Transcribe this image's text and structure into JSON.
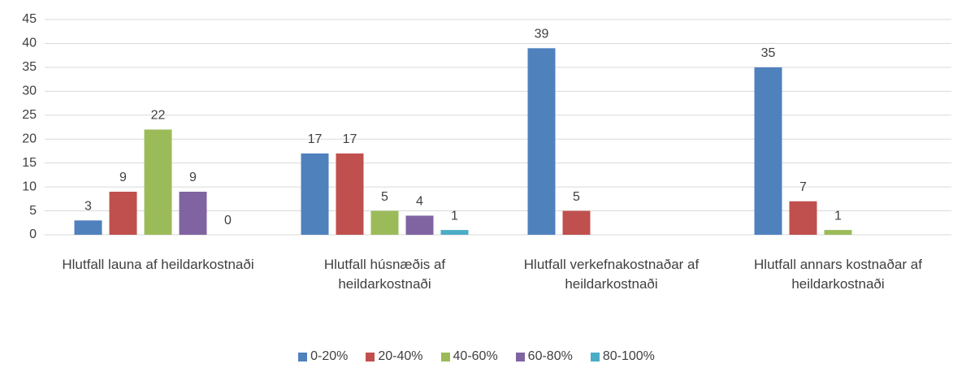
{
  "chart_data": {
    "type": "bar",
    "categories": [
      "Hlutfall launa af heildarkostnaði",
      "Hlutfall húsnæðis af heildarkostnaði",
      "Hlutfall verkefnakostnaðar af heildarkostnaði",
      "Hlutfall annars kostnaðar af heildarkostnaði"
    ],
    "series": [
      {
        "name": "0-20%",
        "color": "#4f81bd",
        "values": [
          3,
          17,
          39,
          35
        ]
      },
      {
        "name": "20-40%",
        "color": "#c0504d",
        "values": [
          9,
          17,
          5,
          7
        ]
      },
      {
        "name": "40-60%",
        "color": "#9bbb59",
        "values": [
          22,
          5,
          null,
          1
        ]
      },
      {
        "name": "60-80%",
        "color": "#8064a2",
        "values": [
          9,
          4,
          null,
          null
        ]
      },
      {
        "name": "80-100%",
        "color": "#4bacc6",
        "values": [
          0,
          1,
          null,
          null
        ]
      }
    ],
    "ylim": [
      0,
      45
    ],
    "yticks": [
      0,
      5,
      10,
      15,
      20,
      25,
      30,
      35,
      40,
      45
    ],
    "grid": true,
    "legend": "bottom"
  }
}
